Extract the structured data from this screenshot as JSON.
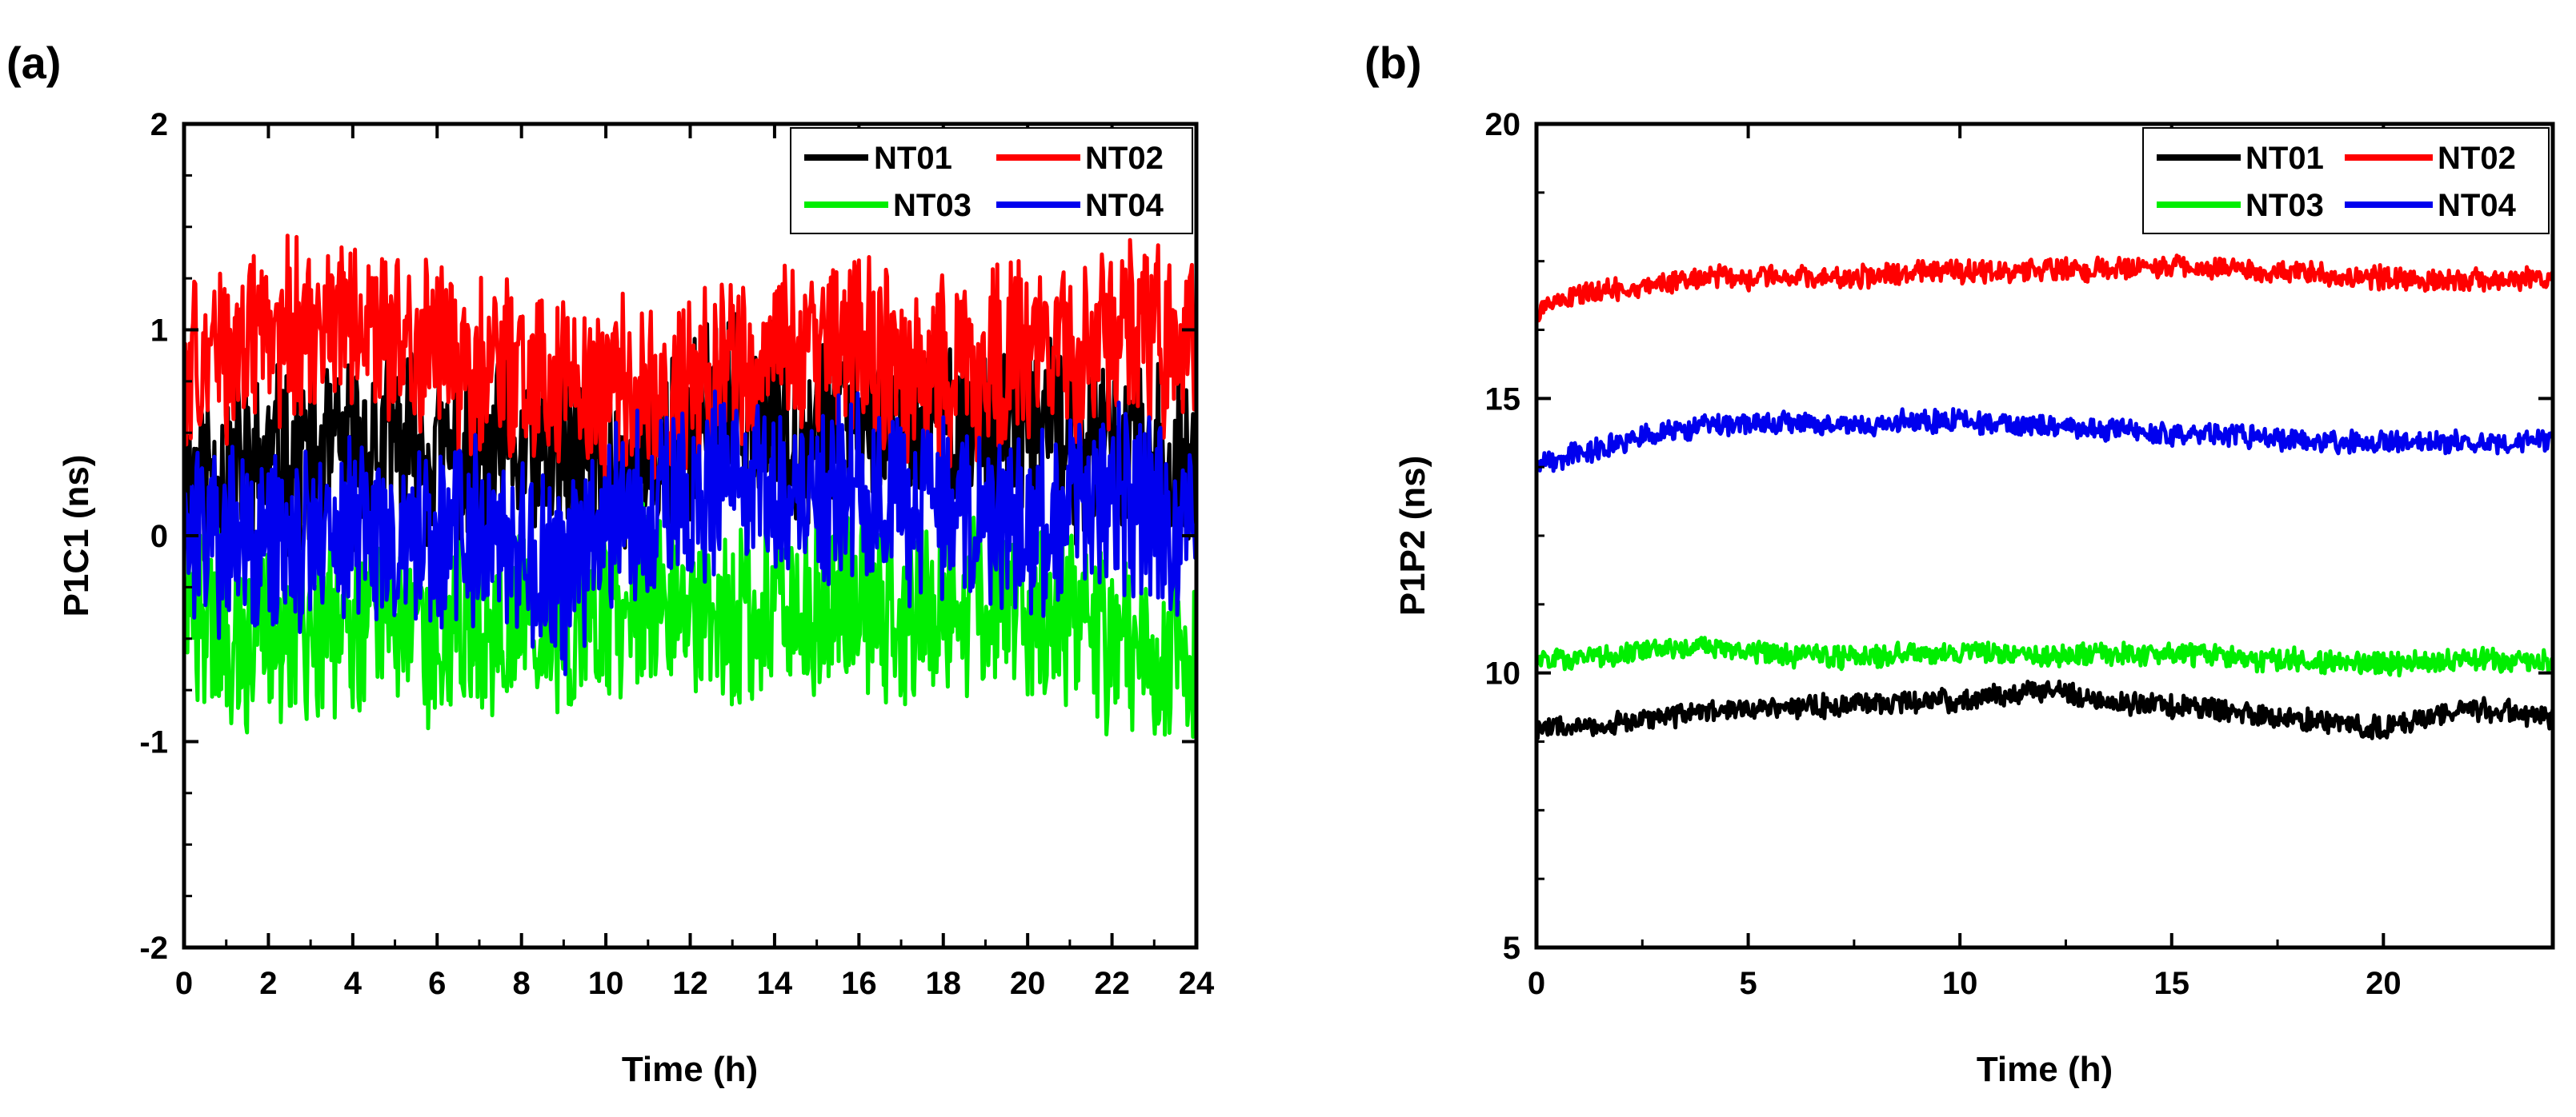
{
  "chart_data": [
    {
      "type": "line",
      "panel_label": "(a)",
      "xlabel": "Time (h)",
      "ylabel": "P1C1 (ns)",
      "xlim": [
        0,
        24
      ],
      "ylim": [
        -2,
        2
      ],
      "xticks": [
        0,
        2,
        4,
        6,
        8,
        10,
        12,
        14,
        16,
        18,
        20,
        22,
        24
      ],
      "yticks": [
        -2,
        -1,
        0,
        1,
        2
      ],
      "legend_position": "top-right",
      "grid": false,
      "series": [
        {
          "name": "NT01",
          "color": "#000000",
          "x": [
            0,
            1,
            2,
            3,
            4,
            5,
            6,
            7,
            8,
            9,
            10,
            11,
            12,
            13,
            14,
            15,
            16,
            17,
            18,
            19,
            20,
            21,
            22,
            23,
            24
          ],
          "values": [
            0.3,
            0.35,
            0.35,
            0.4,
            0.4,
            0.45,
            0.4,
            0.35,
            0.4,
            0.35,
            0.3,
            0.3,
            0.55,
            0.6,
            0.55,
            0.55,
            0.6,
            0.55,
            0.55,
            0.5,
            0.55,
            0.45,
            0.45,
            0.35,
            0.35
          ]
        },
        {
          "name": "NT02",
          "color": "#ff0000",
          "x": [
            0,
            1,
            2,
            3,
            4,
            5,
            6,
            7,
            8,
            9,
            10,
            11,
            12,
            13,
            14,
            15,
            16,
            17,
            18,
            19,
            20,
            21,
            22,
            23,
            24
          ],
          "values": [
            0.85,
            0.9,
            1.0,
            0.95,
            1.05,
            0.95,
            0.85,
            0.8,
            0.75,
            0.75,
            0.7,
            0.65,
            0.75,
            0.8,
            0.85,
            0.9,
            0.95,
            0.8,
            0.8,
            0.85,
            0.9,
            0.85,
            0.95,
            0.95,
            0.95
          ]
        },
        {
          "name": "NT03",
          "color": "#00ee00",
          "x": [
            0,
            1,
            2,
            3,
            4,
            5,
            6,
            7,
            8,
            9,
            10,
            11,
            12,
            13,
            14,
            15,
            16,
            17,
            18,
            19,
            20,
            21,
            22,
            23,
            24
          ],
          "values": [
            -0.35,
            -0.45,
            -0.5,
            -0.45,
            -0.4,
            -0.45,
            -0.45,
            -0.4,
            -0.4,
            -0.45,
            -0.35,
            -0.3,
            -0.35,
            -0.4,
            -0.35,
            -0.35,
            -0.3,
            -0.4,
            -0.35,
            -0.3,
            -0.35,
            -0.4,
            -0.5,
            -0.55,
            -0.55
          ]
        },
        {
          "name": "NT04",
          "color": "#0000ee",
          "x": [
            0,
            1,
            2,
            3,
            4,
            5,
            6,
            7,
            8,
            9,
            10,
            11,
            12,
            13,
            14,
            15,
            16,
            17,
            18,
            19,
            20,
            21,
            22,
            23,
            24
          ],
          "values": [
            0.0,
            -0.05,
            -0.05,
            0.0,
            0.0,
            -0.05,
            -0.05,
            0.0,
            -0.05,
            -0.2,
            0.1,
            0.15,
            0.2,
            0.25,
            0.2,
            0.2,
            0.2,
            0.15,
            0.15,
            0.1,
            0.05,
            0.15,
            0.2,
            0.1,
            -0.05
          ]
        }
      ]
    },
    {
      "type": "line",
      "panel_label": "(b)",
      "xlabel": "Time (h)",
      "ylabel": "P1P2 (ns)",
      "xlim": [
        0,
        24
      ],
      "ylim": [
        5,
        20
      ],
      "xticks": [
        0,
        5,
        10,
        15,
        20
      ],
      "yticks": [
        5,
        10,
        15,
        20
      ],
      "legend_position": "top-right",
      "grid": false,
      "series": [
        {
          "name": "NT01",
          "color": "#000000",
          "x": [
            0,
            1,
            2,
            3,
            4,
            5,
            6,
            7,
            8,
            9,
            10,
            11,
            12,
            13,
            14,
            15,
            16,
            17,
            18,
            19,
            20,
            21,
            22,
            23,
            24
          ],
          "values": [
            9.0,
            9.0,
            9.1,
            9.2,
            9.3,
            9.35,
            9.4,
            9.4,
            9.45,
            9.5,
            9.5,
            9.6,
            9.7,
            9.55,
            9.45,
            9.4,
            9.35,
            9.2,
            9.15,
            9.05,
            9.0,
            9.2,
            9.35,
            9.3,
            9.2
          ]
        },
        {
          "name": "NT02",
          "color": "#ff0000",
          "x": [
            0,
            1,
            2,
            3,
            4,
            5,
            6,
            7,
            8,
            9,
            10,
            11,
            12,
            13,
            14,
            15,
            16,
            17,
            18,
            19,
            20,
            21,
            22,
            23,
            24
          ],
          "values": [
            16.6,
            16.9,
            17.0,
            17.1,
            17.2,
            17.2,
            17.2,
            17.2,
            17.25,
            17.3,
            17.3,
            17.3,
            17.35,
            17.35,
            17.4,
            17.4,
            17.4,
            17.3,
            17.3,
            17.2,
            17.2,
            17.15,
            17.15,
            17.2,
            17.2
          ]
        },
        {
          "name": "NT03",
          "color": "#00ee00",
          "x": [
            0,
            1,
            2,
            3,
            4,
            5,
            6,
            7,
            8,
            9,
            10,
            11,
            12,
            13,
            14,
            15,
            16,
            17,
            18,
            19,
            20,
            21,
            22,
            23,
            24
          ],
          "values": [
            10.2,
            10.3,
            10.35,
            10.45,
            10.5,
            10.4,
            10.3,
            10.3,
            10.3,
            10.35,
            10.35,
            10.35,
            10.3,
            10.35,
            10.35,
            10.35,
            10.3,
            10.25,
            10.25,
            10.2,
            10.15,
            10.2,
            10.25,
            10.2,
            10.2
          ]
        },
        {
          "name": "NT04",
          "color": "#0000ee",
          "x": [
            0,
            1,
            2,
            3,
            4,
            5,
            6,
            7,
            8,
            9,
            10,
            11,
            12,
            13,
            14,
            15,
            16,
            17,
            18,
            19,
            20,
            21,
            22,
            23,
            24
          ],
          "values": [
            13.8,
            14.0,
            14.2,
            14.4,
            14.5,
            14.55,
            14.55,
            14.5,
            14.55,
            14.6,
            14.6,
            14.55,
            14.5,
            14.45,
            14.4,
            14.35,
            14.35,
            14.3,
            14.25,
            14.2,
            14.2,
            14.2,
            14.2,
            14.2,
            14.2
          ]
        }
      ]
    }
  ]
}
